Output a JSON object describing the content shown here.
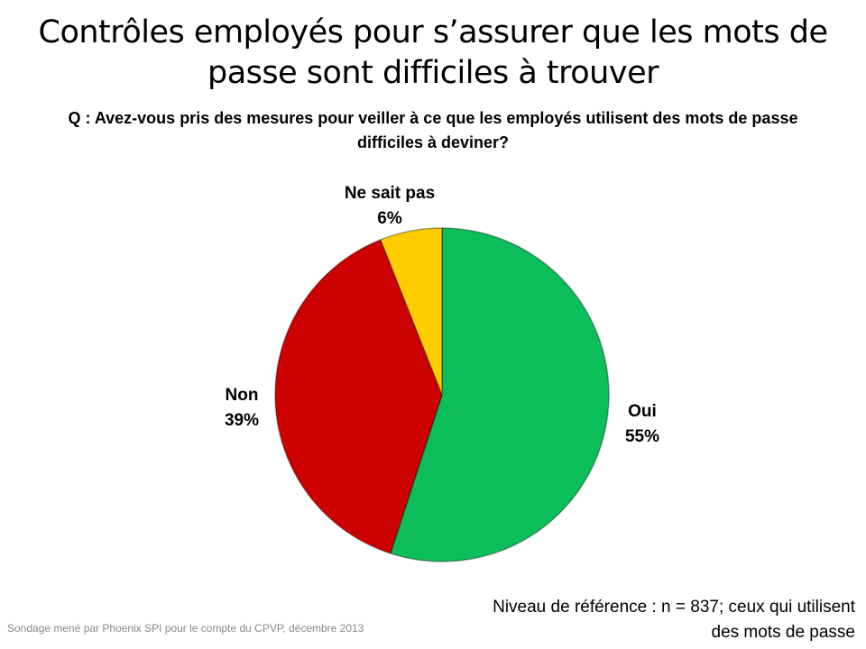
{
  "title": "Contrôles employés pour s’assurer que les mots de passe sont difficiles à trouver",
  "question": "Q : Avez-vous pris des mesures pour veiller à ce que les employés utilisent des mots de passe difficiles à deviner?",
  "chart_data": {
    "type": "pie",
    "start_angle": "top",
    "direction": "clockwise",
    "slices": [
      {
        "label": "Oui",
        "value": 55,
        "value_label": "55%",
        "color": "#0BBE5A"
      },
      {
        "label": "Non",
        "value": 39,
        "value_label": "39%",
        "color": "#CC0000"
      },
      {
        "label": "Ne sait pas",
        "value": 6,
        "value_label": "6%",
        "color": "#FFCC00"
      }
    ]
  },
  "footer": {
    "source": "Sondage mené par Phoenix SPI pour le compte du CPVP, décembre 2013",
    "base": "Niveau de référence : n = 837; ceux qui utilisent des mots de passe"
  }
}
